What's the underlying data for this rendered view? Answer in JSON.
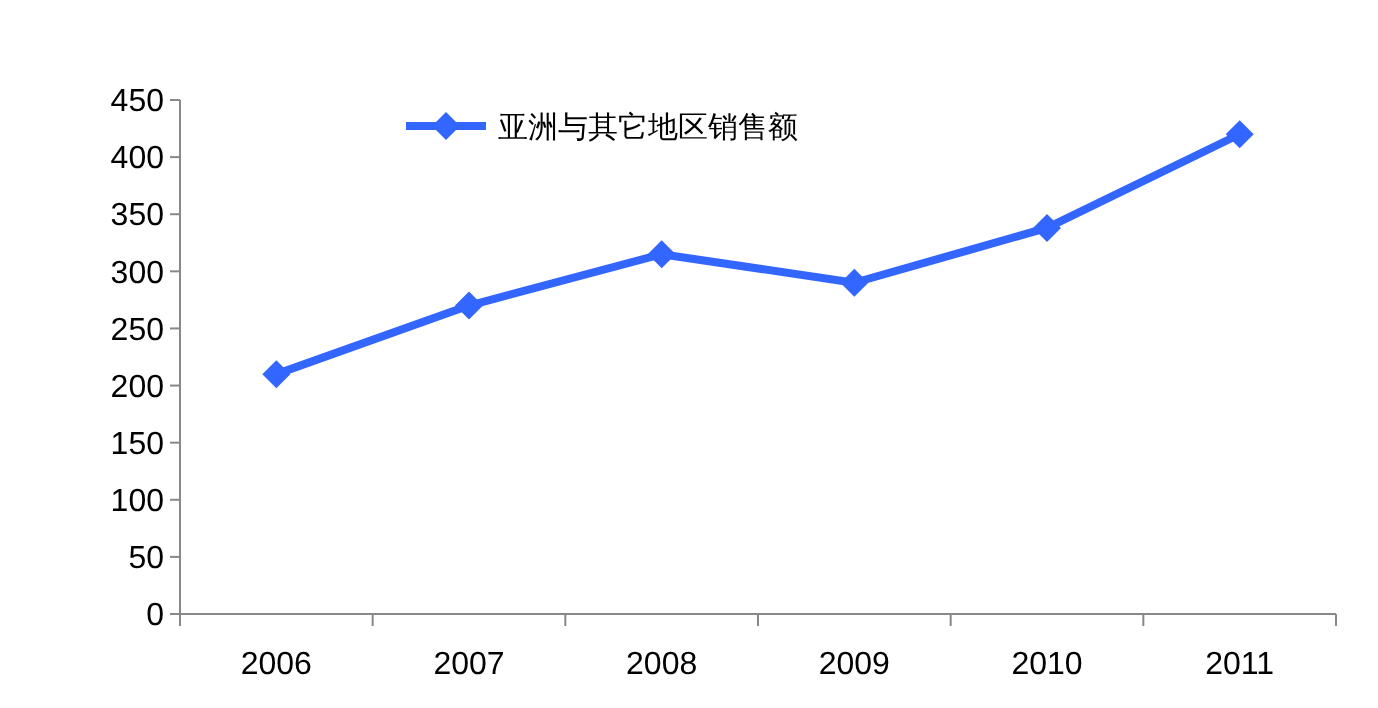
{
  "chart_data": {
    "type": "line",
    "categories": [
      "2006",
      "2007",
      "2008",
      "2009",
      "2010",
      "2011"
    ],
    "series": [
      {
        "name": "亚洲与其它地区销售额",
        "color": "#3366ff",
        "values": [
          210,
          270,
          315,
          290,
          338,
          420
        ]
      }
    ],
    "ylim": [
      0,
      450
    ],
    "yticks": [
      0,
      50,
      100,
      150,
      200,
      250,
      300,
      350,
      400,
      450
    ],
    "grid": false,
    "legend": "top",
    "marker": "diamond",
    "line_style": "solid"
  }
}
